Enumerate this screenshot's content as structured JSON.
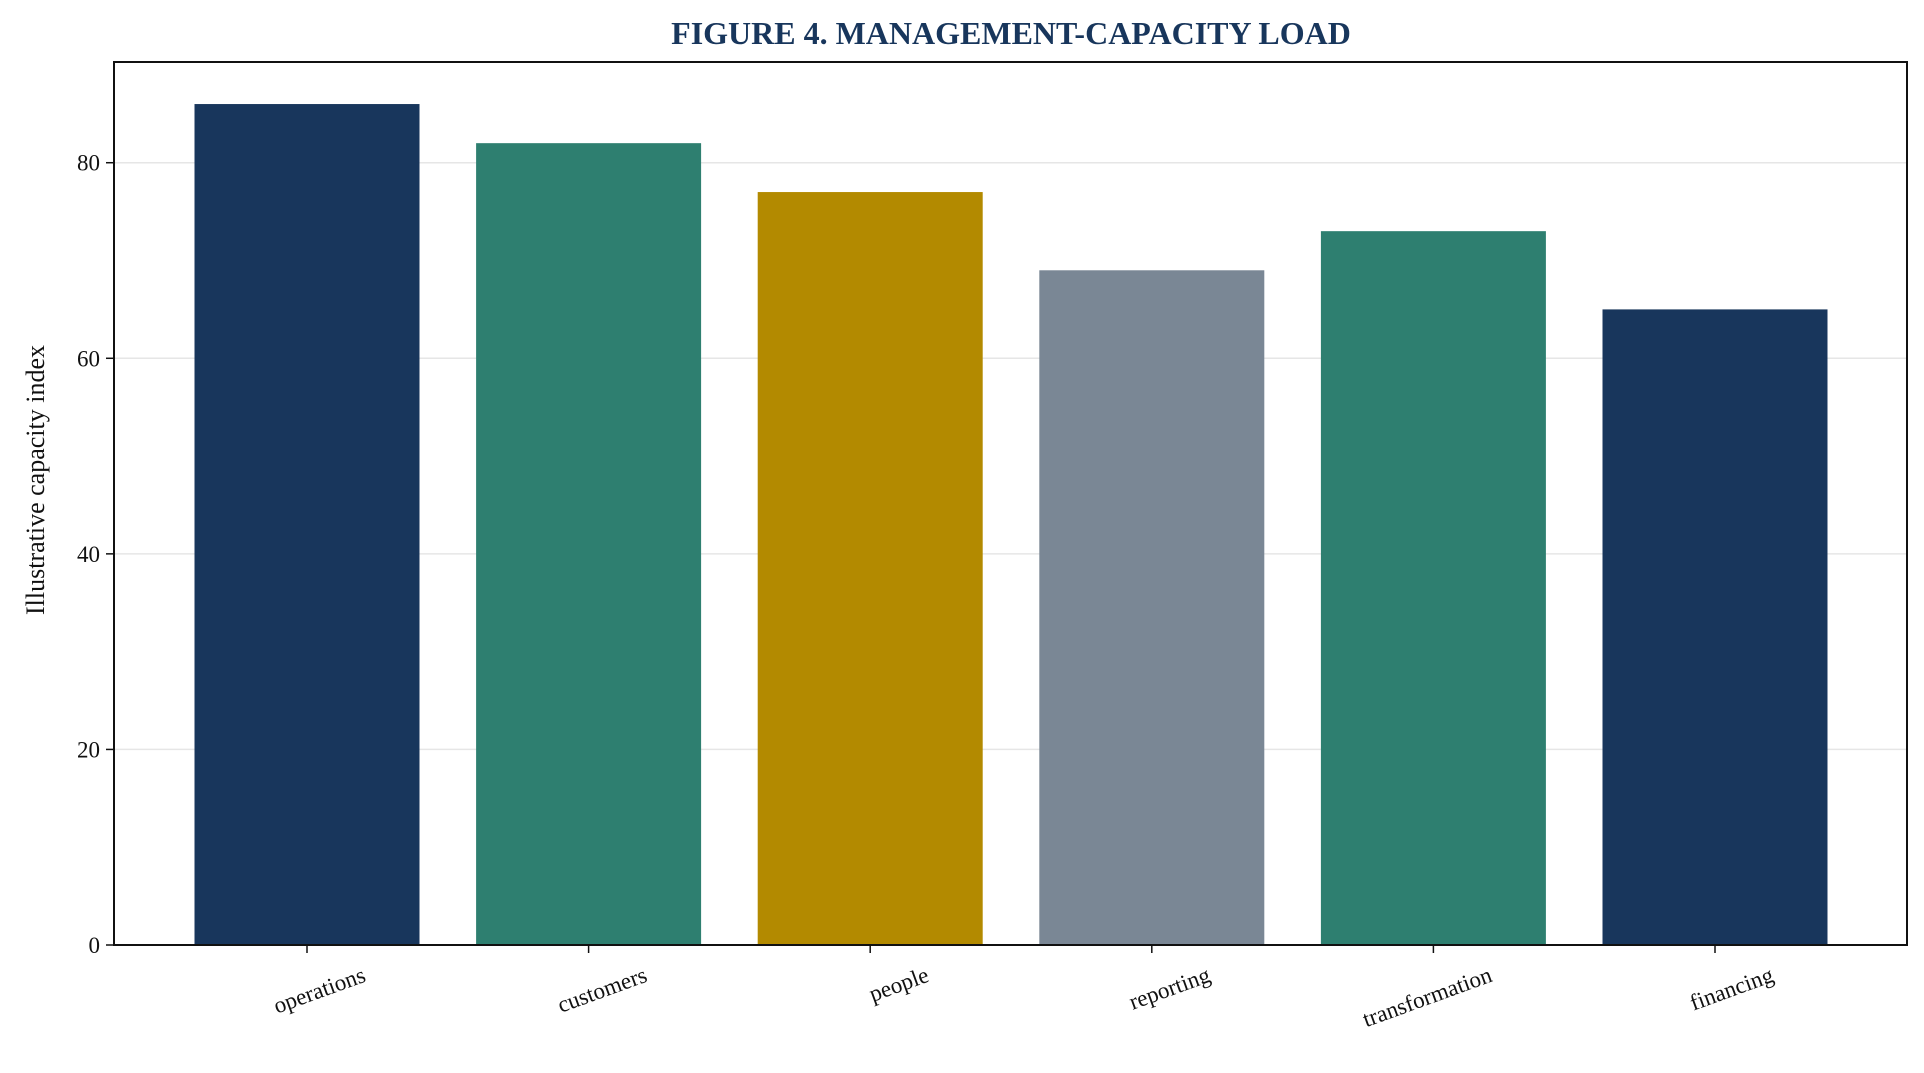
{
  "chart_data": {
    "type": "bar",
    "title": "FIGURE 4. MANAGEMENT-CAPACITY LOAD",
    "xlabel": "",
    "ylabel": "Illustrative capacity index",
    "categories": [
      "operations",
      "customers",
      "people",
      "reporting",
      "transformation",
      "financing"
    ],
    "values": [
      86,
      82,
      77,
      69,
      73,
      65
    ],
    "bar_colors": [
      "#18365c",
      "#2e7f70",
      "#b38a00",
      "#7a8795",
      "#2e7f70",
      "#18365c"
    ],
    "ylim": [
      0,
      90.3
    ],
    "yticks": [
      0,
      20,
      40,
      60,
      80
    ],
    "grid": "horizontal",
    "title_color": "#18365c"
  }
}
